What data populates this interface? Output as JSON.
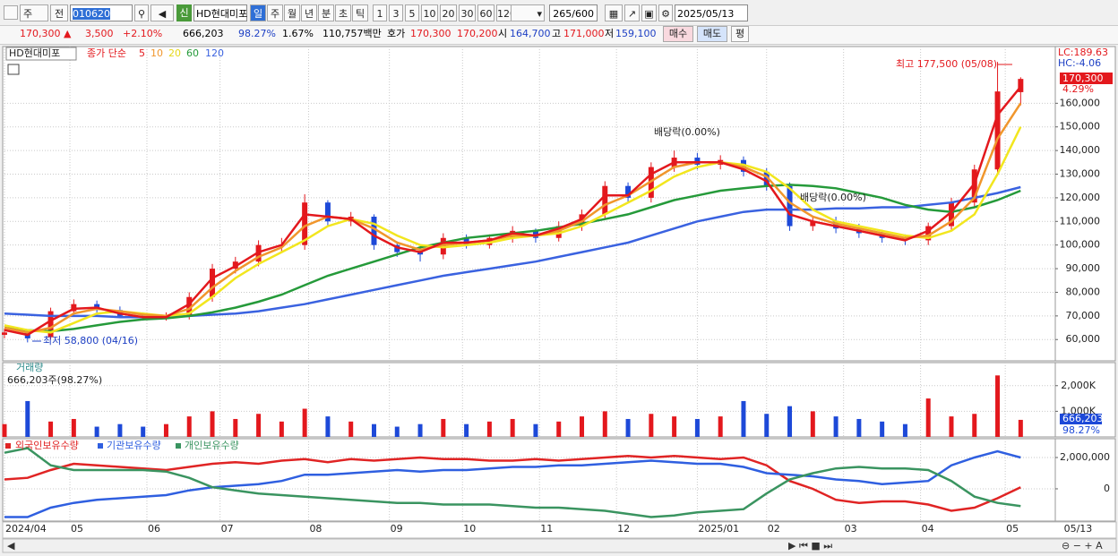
{
  "toolbar": {
    "period_type": "주",
    "prev": "전",
    "code": "010620",
    "new_badge": "신",
    "name": "HD현대미포",
    "periods": [
      "일",
      "주",
      "월",
      "년",
      "분",
      "초",
      "틱"
    ],
    "intervals": [
      "1",
      "3",
      "5",
      "10",
      "20",
      "30",
      "60",
      "120"
    ],
    "count": "265/600",
    "date": "2025/05/13"
  },
  "info": {
    "items": [
      "170,300 ▲",
      "3,500",
      "+2.10%",
      "666,203",
      "98.27%",
      "1.67%",
      "110,757백만",
      "호가",
      "170,300",
      "170,200",
      "시",
      "164,700",
      "고",
      "171,000",
      "저",
      "159,100"
    ],
    "buttons": [
      "매수",
      "매도",
      "평"
    ]
  },
  "chart_data": [
    {
      "type": "candlestick",
      "title": "HD현대미포",
      "ma_label": "종가 단순",
      "x": [
        0,
        6,
        12,
        18,
        24,
        30,
        36,
        42,
        48,
        54,
        60,
        66,
        72,
        78,
        84,
        90,
        96,
        102,
        108,
        114,
        120,
        126,
        132,
        138,
        144,
        150,
        156,
        162,
        168,
        174,
        180,
        186,
        192,
        198,
        204,
        210,
        216,
        222,
        228,
        234,
        240,
        246,
        252,
        258,
        264
      ],
      "open": [
        62000,
        63000,
        61000,
        72000,
        75000,
        72500,
        70000,
        69000,
        70000,
        78000,
        90000,
        93000,
        100000,
        100000,
        118000,
        110000,
        112000,
        100000,
        97000,
        96000,
        103000,
        100000,
        103000,
        106000,
        103000,
        108000,
        113000,
        125000,
        120000,
        133000,
        137000,
        134000,
        136000,
        131000,
        125000,
        108000,
        110000,
        107000,
        105000,
        103000,
        102000,
        108000,
        118000,
        132000,
        164700
      ],
      "high": [
        64500,
        64000,
        73500,
        77000,
        76500,
        74000,
        71500,
        71500,
        80000,
        92000,
        95000,
        102000,
        103000,
        121500,
        119000,
        114000,
        113000,
        101500,
        98500,
        105000,
        104500,
        104500,
        108000,
        107000,
        110000,
        115000,
        127000,
        126500,
        135000,
        140000,
        139000,
        138000,
        137500,
        132500,
        126500,
        112000,
        112000,
        109000,
        106500,
        104500,
        109500,
        120000,
        134000,
        177500,
        171000
      ],
      "low": [
        60500,
        58800,
        60000,
        70500,
        71000,
        69500,
        68000,
        68000,
        68500,
        76000,
        88000,
        91000,
        97000,
        98000,
        108000,
        108000,
        98000,
        95000,
        93000,
        94000,
        98500,
        98500,
        101000,
        101000,
        101500,
        106000,
        111000,
        118000,
        118000,
        131000,
        132000,
        132000,
        129000,
        123000,
        106000,
        106000,
        105000,
        103000,
        101000,
        100000,
        100000,
        106000,
        116000,
        130000,
        159100
      ],
      "close": [
        63000,
        60500,
        72000,
        75000,
        72500,
        70000,
        69000,
        70000,
        78000,
        90000,
        93000,
        100000,
        100000,
        118000,
        110000,
        112000,
        100000,
        97000,
        96000,
        103000,
        100000,
        103000,
        106000,
        103000,
        108000,
        113000,
        125000,
        120000,
        133000,
        137000,
        134000,
        136000,
        131000,
        125000,
        108000,
        110000,
        107000,
        105000,
        103000,
        102000,
        108000,
        118000,
        132000,
        165000,
        170300
      ],
      "up_color": "#e3181d",
      "down_color": "#1d49d8",
      "ma": [
        {
          "name": "5",
          "color": "#e3181d",
          "values": [
            64000,
            62000,
            68000,
            73000,
            73500,
            71000,
            69500,
            69500,
            75000,
            86000,
            91000,
            97000,
            100000,
            113000,
            112000,
            111000,
            104000,
            99000,
            97000,
            101000,
            101000,
            102000,
            105000,
            104000,
            107000,
            111000,
            121000,
            121000,
            130000,
            135000,
            135000,
            135000,
            132000,
            127000,
            113000,
            110000,
            108000,
            106000,
            104000,
            102000,
            106000,
            114000,
            126000,
            155000,
            167000
          ]
        },
        {
          "name": "10",
          "color": "#f0962c",
          "values": [
            65000,
            63000,
            65000,
            71000,
            73000,
            72000,
            70500,
            70000,
            73000,
            82000,
            89000,
            95000,
            99000,
            108000,
            112000,
            111000,
            107000,
            101000,
            98000,
            100000,
            101000,
            102000,
            104000,
            104000,
            106000,
            110000,
            117000,
            121000,
            127000,
            133000,
            135000,
            135000,
            133000,
            129000,
            118000,
            112000,
            109000,
            107000,
            105000,
            103000,
            104000,
            110000,
            120000,
            145000,
            160000
          ]
        },
        {
          "name": "20",
          "color": "#f2e61e",
          "values": [
            66000,
            64000,
            63000,
            67000,
            71000,
            72000,
            71000,
            70000,
            71000,
            78000,
            86000,
            92000,
            97000,
            102000,
            108000,
            111000,
            109000,
            104000,
            100000,
            99000,
            100000,
            101000,
            103000,
            104000,
            105000,
            108000,
            113000,
            118000,
            123000,
            129000,
            133000,
            135000,
            134000,
            131000,
            124000,
            115000,
            110000,
            108000,
            106000,
            104000,
            103000,
            106000,
            113000,
            130000,
            150000
          ]
        },
        {
          "name": "60",
          "color": "#259a3a",
          "values": [
            65000,
            64000,
            63500,
            64500,
            66000,
            67500,
            68500,
            69000,
            70000,
            71500,
            73500,
            76000,
            79000,
            83000,
            87000,
            90000,
            93000,
            96000,
            99000,
            101000,
            103000,
            104000,
            105000,
            106000,
            107500,
            109000,
            111000,
            113000,
            116000,
            119000,
            121000,
            123000,
            124000,
            125000,
            125500,
            125000,
            124000,
            122000,
            120000,
            117000,
            115000,
            114000,
            116000,
            119000,
            123000
          ]
        },
        {
          "name": "120",
          "color": "#3a62e0",
          "values": [
            71000,
            70500,
            70000,
            70000,
            70000,
            69500,
            69500,
            69500,
            70000,
            70500,
            71000,
            72000,
            73500,
            75000,
            77000,
            79000,
            81000,
            83000,
            85000,
            87000,
            88500,
            90000,
            91500,
            93000,
            95000,
            97000,
            99000,
            101000,
            104000,
            107000,
            110000,
            112000,
            114000,
            115000,
            115000,
            115000,
            115500,
            115500,
            116000,
            116000,
            117000,
            118000,
            120000,
            122000,
            124500
          ]
        }
      ],
      "xlim": [
        0,
        273
      ],
      "xticks": [
        {
          "value": 0,
          "label": "2024/04"
        },
        {
          "value": 17,
          "label": "05"
        },
        {
          "value": 37,
          "label": "06"
        },
        {
          "value": 56,
          "label": "07"
        },
        {
          "value": 79,
          "label": "08"
        },
        {
          "value": 100,
          "label": "09"
        },
        {
          "value": 119,
          "label": "10"
        },
        {
          "value": 139,
          "label": "11"
        },
        {
          "value": 159,
          "label": "12"
        },
        {
          "value": 180,
          "label": "2025/01"
        },
        {
          "value": 198,
          "label": "02"
        },
        {
          "value": 218,
          "label": "03"
        },
        {
          "value": 238,
          "label": "04"
        },
        {
          "value": 260,
          "label": "05"
        },
        {
          "value": 275,
          "label": "05/13"
        }
      ],
      "ylim": [
        51000,
        184000
      ],
      "yticks": [
        {
          "value": 60000,
          "label": "60,000"
        },
        {
          "value": 70000,
          "label": "70,000"
        },
        {
          "value": 80000,
          "label": "80,000"
        },
        {
          "value": 90000,
          "label": "90,000"
        },
        {
          "value": 100000,
          "label": "100,000"
        },
        {
          "value": 110000,
          "label": "110,000"
        },
        {
          "value": 120000,
          "label": "120,000"
        },
        {
          "value": 130000,
          "label": "130,000"
        },
        {
          "value": 140000,
          "label": "140,000"
        },
        {
          "value": 150000,
          "label": "150,000"
        },
        {
          "value": 160000,
          "label": "160,000"
        }
      ],
      "grid": true,
      "annotations": [
        "최고 177,500 (05/08)",
        "최저 58,800 (04/16)",
        "배당락(0.00%)",
        "배당락(0.00%)"
      ],
      "side_labels": [
        "LC:189.63",
        "HC:-4.06",
        "170,300",
        "4.29%"
      ]
    },
    {
      "type": "bar",
      "title": "거래량",
      "subtitle": "666,203주(98.27%)",
      "values": [
        500000,
        1400000,
        600000,
        700000,
        400000,
        500000,
        400000,
        500000,
        800000,
        1000000,
        700000,
        900000,
        600000,
        1100000,
        800000,
        600000,
        500000,
        400000,
        500000,
        700000,
        500000,
        600000,
        700000,
        500000,
        600000,
        800000,
        1000000,
        700000,
        900000,
        800000,
        700000,
        800000,
        1400000,
        900000,
        1200000,
        1000000,
        800000,
        700000,
        600000,
        500000,
        1500000,
        800000,
        900000,
        2400000,
        666203
      ],
      "ylim": [
        0,
        2900000
      ],
      "yticks": [
        {
          "value": 1000000,
          "label": "1,000K"
        },
        {
          "value": 2000000,
          "label": "2,000K"
        }
      ],
      "side_labels": [
        "666,203",
        "98.27%"
      ]
    },
    {
      "type": "line",
      "series": [
        {
          "name": "외국인보유수량",
          "color": "#e02424",
          "values": [
            600000,
            700000,
            1200000,
            1600000,
            1500000,
            1400000,
            1300000,
            1200000,
            1400000,
            1600000,
            1700000,
            1600000,
            1800000,
            1900000,
            1700000,
            1900000,
            1800000,
            1900000,
            2000000,
            1900000,
            1900000,
            1800000,
            1800000,
            1900000,
            1800000,
            1900000,
            2000000,
            2100000,
            2000000,
            2100000,
            2000000,
            1900000,
            2000000,
            1500000,
            500000,
            0,
            -700000,
            -900000,
            -800000,
            -800000,
            -1000000,
            -1400000,
            -1200000,
            -600000,
            100000
          ]
        },
        {
          "name": "기관보유수량",
          "color": "#2f5fe0",
          "values": [
            -1800000,
            -1800000,
            -1200000,
            -900000,
            -700000,
            -600000,
            -500000,
            -400000,
            -100000,
            100000,
            200000,
            300000,
            500000,
            900000,
            900000,
            1000000,
            1100000,
            1200000,
            1100000,
            1200000,
            1200000,
            1300000,
            1400000,
            1400000,
            1500000,
            1500000,
            1600000,
            1700000,
            1800000,
            1700000,
            1600000,
            1600000,
            1400000,
            1000000,
            900000,
            800000,
            600000,
            500000,
            300000,
            400000,
            500000,
            1500000,
            2000000,
            2400000,
            2000000
          ]
        },
        {
          "name": "개인보유수량",
          "color": "#3a9460",
          "values": [
            2300000,
            2600000,
            1500000,
            1200000,
            1200000,
            1200000,
            1200000,
            1100000,
            700000,
            100000,
            -100000,
            -300000,
            -400000,
            -500000,
            -600000,
            -700000,
            -800000,
            -900000,
            -900000,
            -1000000,
            -1000000,
            -1000000,
            -1100000,
            -1200000,
            -1200000,
            -1300000,
            -1400000,
            -1600000,
            -1800000,
            -1700000,
            -1500000,
            -1400000,
            -1300000,
            -300000,
            600000,
            1000000,
            1300000,
            1400000,
            1300000,
            1300000,
            1200000,
            500000,
            -500000,
            -900000,
            -1100000
          ]
        }
      ],
      "ylim": [
        -2060000,
        3200000
      ],
      "yticks": [
        {
          "value": 2000000,
          "label": "2,000,000"
        },
        0
      ]
    }
  ]
}
